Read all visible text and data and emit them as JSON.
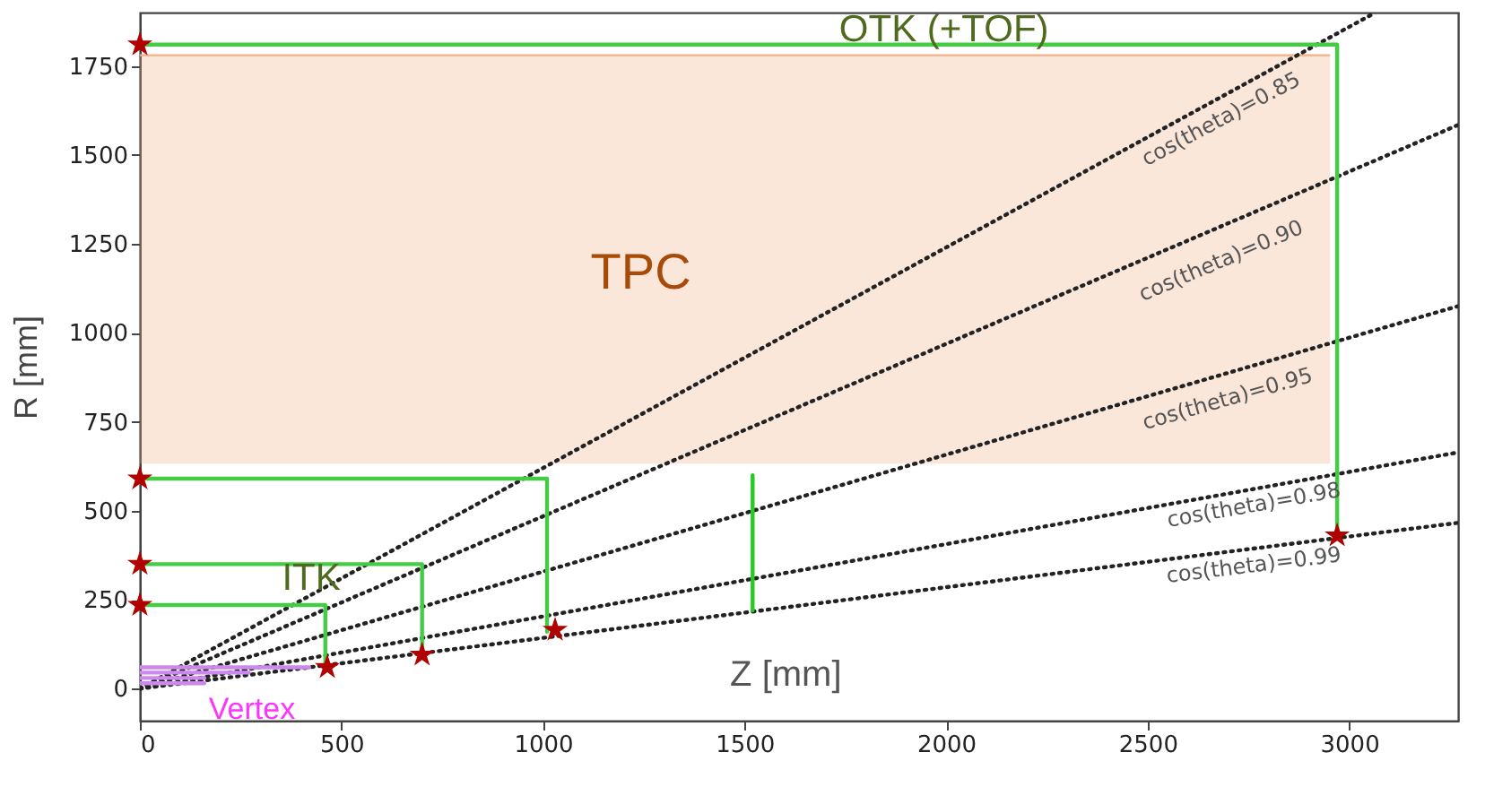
{
  "chart_data": {
    "type": "line",
    "xlabel": "Z [mm]",
    "ylabel": "R [mm]",
    "xlim": [
      0,
      3270
    ],
    "ylim": [
      -90,
      1900
    ],
    "xticks": [
      0,
      500,
      1000,
      1500,
      2000,
      2500,
      3000
    ],
    "yticks": [
      0,
      250,
      500,
      750,
      1000,
      1250,
      1500,
      1750
    ],
    "grid": false,
    "series": [
      {
        "color": "#f4b088",
        "x": [
          0,
          2950
        ],
        "values": [
          1780,
          1780
        ],
        "upper": [
          1780,
          1780
        ],
        "lower": [
          635,
          635
        ]
      },
      {
        "color": "#222222",
        "line_style": "dotted",
        "x": [
          0,
          3060
        ],
        "values": [
          0,
          1897
        ]
      },
      {
        "color": "#222222",
        "line_style": "dotted",
        "x": [
          0,
          3270
        ],
        "values": [
          0,
          1584
        ]
      },
      {
        "color": "#222222",
        "line_style": "dotted",
        "x": [
          0,
          3270
        ],
        "values": [
          0,
          1075
        ]
      },
      {
        "color": "#222222",
        "line_style": "dotted",
        "x": [
          0,
          3270
        ],
        "values": [
          0,
          664
        ]
      },
      {
        "color": "#222222",
        "line_style": "dotted",
        "x": [
          0,
          3270
        ],
        "values": [
          0,
          466
        ]
      },
      {
        "color": "#44cc44",
        "x": [
          0,
          2970,
          2970
        ],
        "values": [
          1810,
          1810,
          430
        ]
      },
      {
        "color": "#44cc44",
        "x": [
          0,
          1010,
          1010
        ],
        "values": [
          590,
          590,
          160
        ]
      },
      {
        "color": "#44cc44",
        "x": [
          0,
          700,
          700
        ],
        "values": [
          350,
          350,
          95
        ]
      },
      {
        "color": "#44cc44",
        "x": [
          0,
          460,
          460
        ],
        "values": [
          235,
          235,
          60
        ]
      },
      {
        "color": "#22cc22",
        "x": [
          1520,
          1520
        ],
        "values": [
          220,
          600
        ]
      },
      {
        "color": "#cc88ee",
        "x": [
          0,
          420
        ],
        "values": [
          60,
          60
        ]
      },
      {
        "color": "#cc88ee",
        "x": [
          0,
          270
        ],
        "values": [
          45,
          45
        ]
      },
      {
        "color": "#cc88ee",
        "x": [
          0,
          160
        ],
        "values": [
          30,
          30
        ]
      },
      {
        "color": "#cc88ee",
        "x": [
          0,
          160
        ],
        "values": [
          15,
          15
        ]
      },
      {
        "type": "scatter",
        "color": "#b00000",
        "marker": "star",
        "x": [
          0,
          0,
          0,
          0,
          465,
          700,
          1030,
          2970
        ],
        "values": [
          1810,
          590,
          350,
          235,
          60,
          95,
          165,
          430
        ]
      }
    ],
    "annotations": [
      "OTK (+TOF)",
      "TPC",
      "ITK",
      "Vertex",
      "cos(theta)=0.85",
      "cos(theta)=0.90",
      "cos(theta)=0.95",
      "cos(theta)=0.98",
      "cos(theta)=0.99"
    ]
  }
}
